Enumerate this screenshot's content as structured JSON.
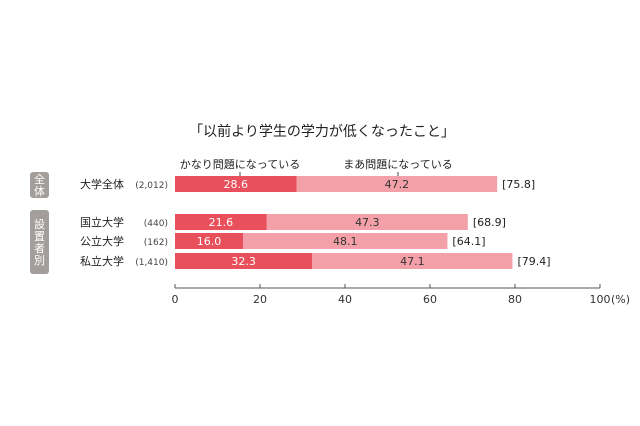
{
  "chart_data": {
    "type": "bar",
    "stacked": true,
    "orientation": "horizontal",
    "title": "「以前より学生の学力が低くなったこと」",
    "xlim": [
      0,
      100
    ],
    "x_ticks": [
      "0",
      "20",
      "40",
      "60",
      "80",
      "100"
    ],
    "x_unit": "(%)",
    "grid": false,
    "groups": [
      {
        "label": "全体",
        "rows": [
          0
        ]
      },
      {
        "label": "設置者別",
        "rows": [
          1,
          2,
          3
        ]
      }
    ],
    "categories": [
      "大学全体",
      "国立大学",
      "公立大学",
      "私立大学"
    ],
    "counts": [
      "(2,012)",
      "(440)",
      "(162)",
      "(1,410)"
    ],
    "series": [
      {
        "name": "かなり問題になっている",
        "values": [
          28.6,
          21.6,
          16.0,
          32.3
        ],
        "labels": [
          "28.6",
          "21.6",
          "16.0",
          "32.3"
        ],
        "color": "#e8505b"
      },
      {
        "name": "まあ問題になっている",
        "values": [
          47.2,
          47.3,
          48.1,
          47.1
        ],
        "labels": [
          "47.2",
          "47.3",
          "48.1",
          "47.1"
        ],
        "color": "#f4a0a8"
      }
    ],
    "totals": [
      "[75.8]",
      "[68.9]",
      "[64.1]",
      "[79.4]"
    ],
    "colors": {
      "group_box": "#a39e9c",
      "axis": "#555555",
      "label_inside": "#ffffff",
      "text": "#222222"
    }
  }
}
